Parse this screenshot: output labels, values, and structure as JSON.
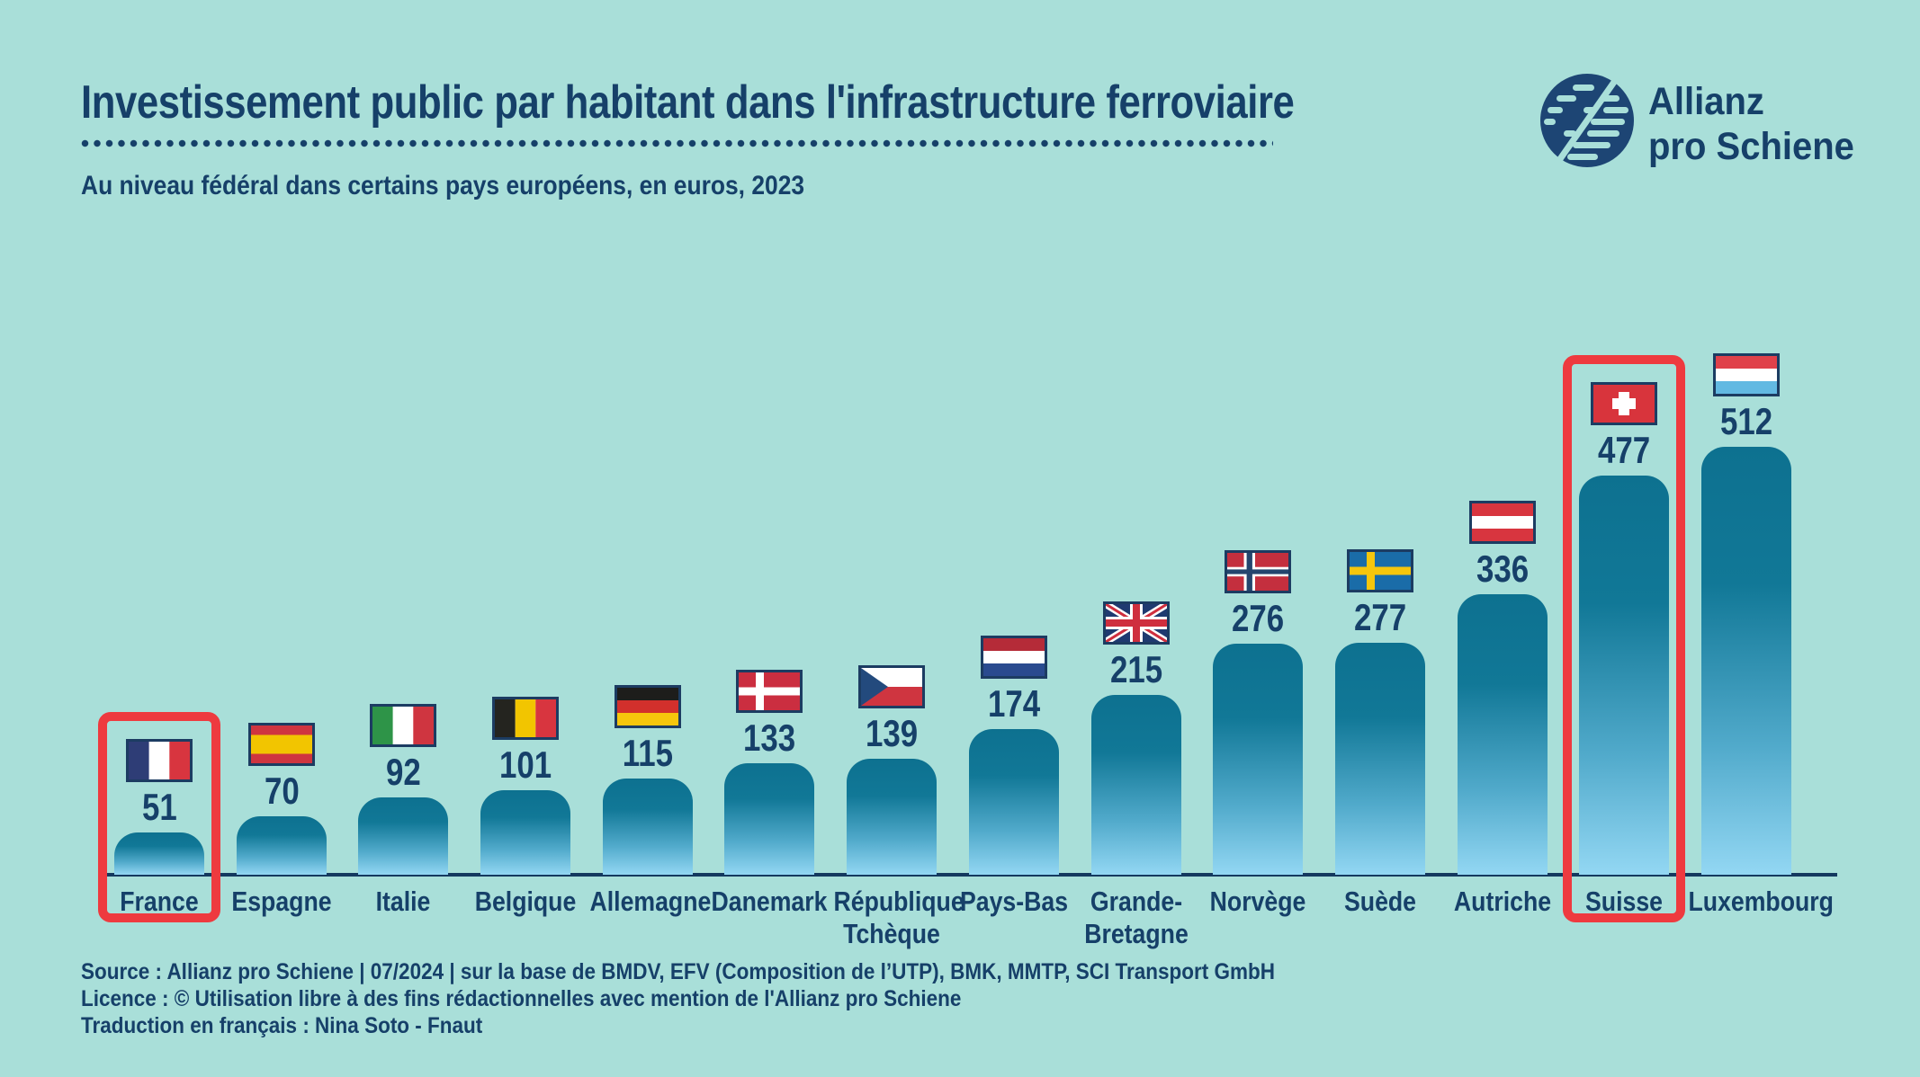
{
  "colors": {
    "background": "#a9dfd9",
    "navy_text": "#164069",
    "highlight_red": "#ee3a3f",
    "bar_gradient_top": "#0d7190",
    "bar_gradient_bottom": "#93d7f3",
    "baseline": "#14395f"
  },
  "header": {
    "title": "Investissement public par habitant dans l'infrastructure ferroviaire",
    "subtitle": "Au niveau fédéral dans certains pays européens, en euros, 2023"
  },
  "logo": {
    "line1": "Allianz",
    "line2": "pro Schiene"
  },
  "chart_data": {
    "type": "bar",
    "title": "Investissement public par habitant dans l'infrastructure ferroviaire",
    "subtitle": "Au niveau fédéral dans certains pays européens, en euros, 2023",
    "unit": "euros",
    "year": "2023",
    "categories": [
      "France",
      "Espagne",
      "Italie",
      "Belgique",
      "Allemagne",
      "Danemark",
      "République Tchèque",
      "Pays-Bas",
      "Grande-Bretagne",
      "Norvège",
      "Suède",
      "Autriche",
      "Suisse",
      "Luxembourg"
    ],
    "values": [
      51,
      70,
      92,
      101,
      115,
      133,
      139,
      174,
      215,
      276,
      277,
      336,
      477,
      512
    ],
    "flag_codes": [
      "fr",
      "es",
      "it",
      "be",
      "de",
      "dk",
      "cz",
      "nl",
      "gb",
      "no",
      "se",
      "at",
      "ch",
      "lu"
    ],
    "label_lines": [
      [
        "France"
      ],
      [
        "Espagne"
      ],
      [
        "Italie"
      ],
      [
        "Belgique"
      ],
      [
        "Allemagne"
      ],
      [
        "Danemark"
      ],
      [
        "République",
        "Tchèque"
      ],
      [
        "Pays-Bas"
      ],
      [
        "Grande-",
        "Bretagne"
      ],
      [
        "Norvège"
      ],
      [
        "Suède"
      ],
      [
        "Autriche"
      ],
      [
        "Suisse"
      ],
      [
        "Luxembourg"
      ]
    ],
    "highlighted": [
      "France",
      "Suisse"
    ],
    "ylim": [
      0,
      550
    ],
    "grid": false,
    "legend": false,
    "orientation": "vertical"
  },
  "footer": {
    "source": "Source : Allianz pro Schiene | 07/2024 | sur la base de BMDV, EFV (Composition de l’UTP), BMK, MMTP, SCI Transport GmbH",
    "licence": "Licence : © Utilisation libre à des fins rédactionnelles avec mention de l'Allianz pro Schiene",
    "translation": "Traduction en français : Nina Soto - Fnaut"
  }
}
